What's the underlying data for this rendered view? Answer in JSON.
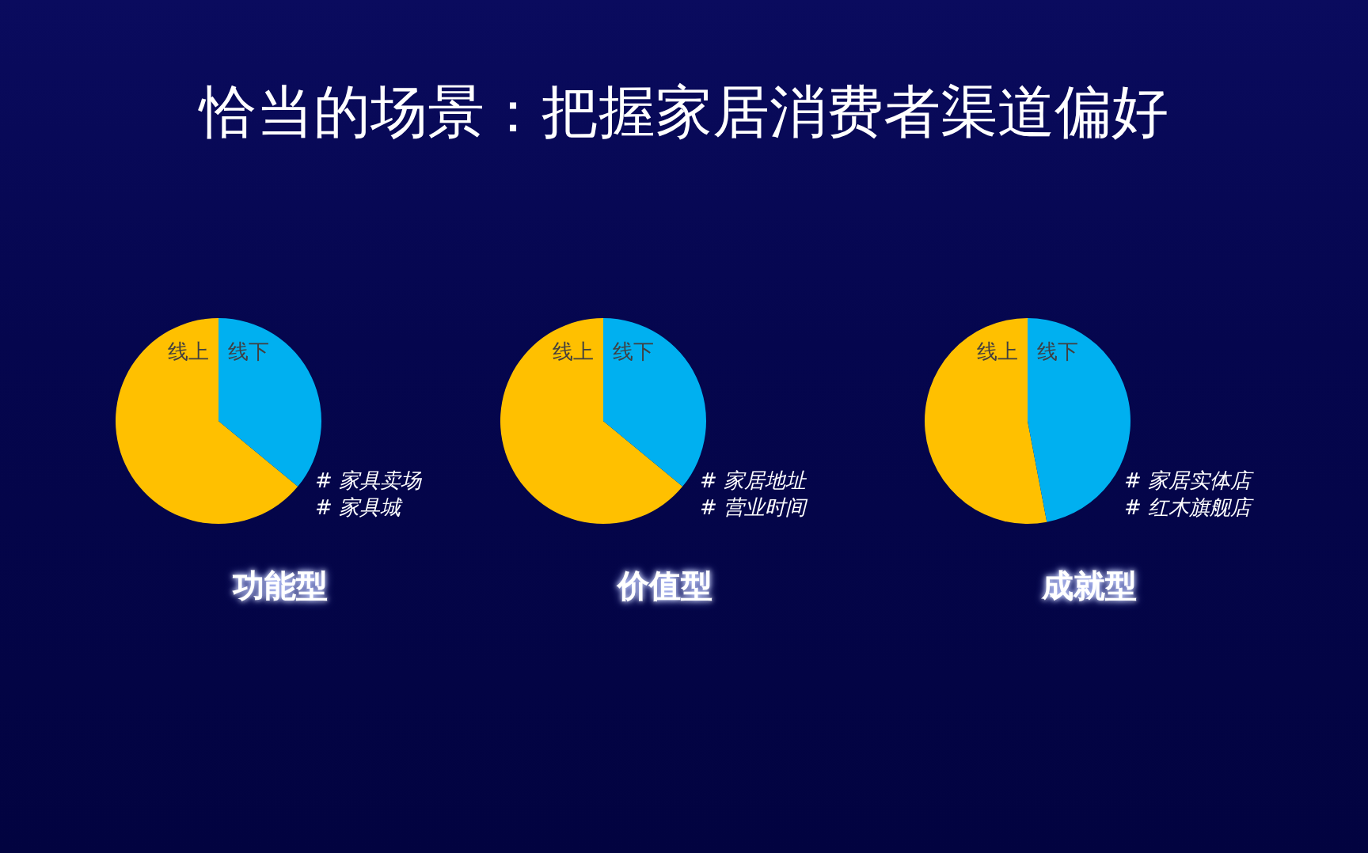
{
  "chart_data": [
    {
      "type": "other",
      "title": "恰当的场景：把握家居消费者渠道偏好"
    },
    {
      "type": "pie",
      "title": "功能型",
      "categories": [
        "线上",
        "线下"
      ],
      "values": [
        64,
        36
      ],
      "colors": [
        "#ffc000",
        "#00b0f0"
      ],
      "annotations": [
        "# 家具卖场",
        "# 家具城"
      ]
    },
    {
      "type": "pie",
      "title": "价值型",
      "categories": [
        "线上",
        "线下"
      ],
      "values": [
        64,
        36
      ],
      "colors": [
        "#ffc000",
        "#00b0f0"
      ],
      "annotations": [
        "# 家居地址",
        "# 营业时间"
      ]
    },
    {
      "type": "pie",
      "title": "成就型",
      "categories": [
        "线上",
        "线下"
      ],
      "values": [
        53,
        47
      ],
      "colors": [
        "#ffc000",
        "#00b0f0"
      ],
      "annotations": [
        "# 家居实体店",
        "# 红木旗舰店"
      ]
    }
  ]
}
